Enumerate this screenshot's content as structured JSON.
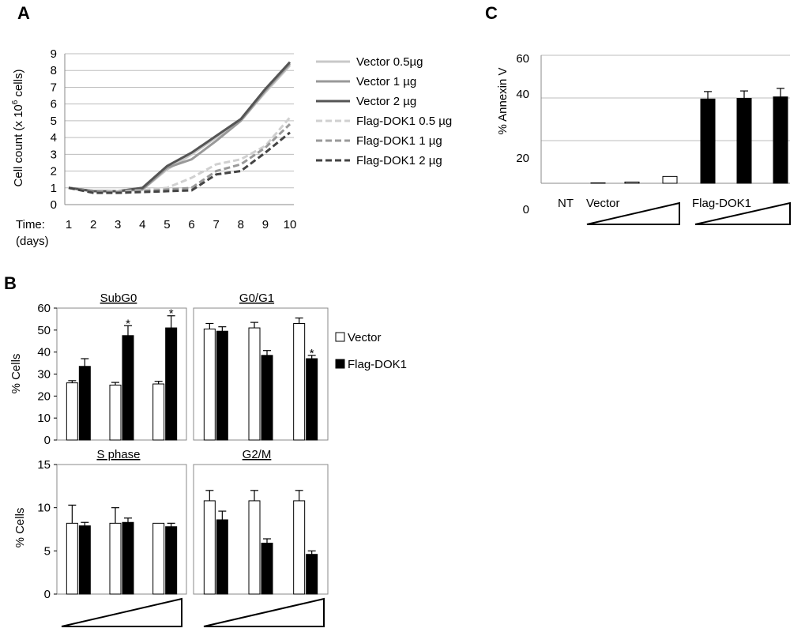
{
  "panels": {
    "a": "A",
    "b": "B",
    "c": "C"
  },
  "chart_data": [
    {
      "panel": "A",
      "type": "line",
      "title": "",
      "xlabel": "Time:",
      "xlabel2": "(days)",
      "ylabel": "Cell count (x 10",
      "ylabel_sup": "6",
      "ylabel_end": " cells)",
      "x": [
        1,
        2,
        3,
        4,
        5,
        6,
        7,
        8,
        9,
        10
      ],
      "ylim": [
        0,
        9
      ],
      "yticks": [
        0,
        1,
        2,
        3,
        4,
        5,
        6,
        7,
        8,
        9
      ],
      "grid": true,
      "legend": "right",
      "series": [
        {
          "name": "Vector 0.5µg",
          "color": "#c8c8c8",
          "dash": false,
          "values": [
            1.0,
            0.8,
            0.8,
            0.9,
            2.1,
            3.0,
            4.0,
            5.0,
            6.7,
            8.3
          ]
        },
        {
          "name": "Vector 1 µg",
          "color": "#999999",
          "dash": false,
          "values": [
            1.0,
            0.8,
            0.8,
            0.9,
            2.2,
            2.7,
            3.8,
            5.0,
            6.8,
            8.4
          ]
        },
        {
          "name": "Vector 2 µg",
          "color": "#555555",
          "dash": false,
          "values": [
            1.0,
            0.8,
            0.8,
            1.0,
            2.3,
            3.1,
            4.1,
            5.1,
            6.9,
            8.5
          ]
        },
        {
          "name": "Flag-DOK1 0.5 µg",
          "color": "#d0d0d0",
          "dash": true,
          "values": [
            1.0,
            0.75,
            0.8,
            0.85,
            1.0,
            1.6,
            2.4,
            2.7,
            3.5,
            5.2
          ]
        },
        {
          "name": "Flag-DOK1 1 µg",
          "color": "#9a9a9a",
          "dash": true,
          "values": [
            1.0,
            0.75,
            0.75,
            0.8,
            0.9,
            1.0,
            2.0,
            2.4,
            3.4,
            4.8
          ]
        },
        {
          "name": "Flag-DOK1 2 µg",
          "color": "#444444",
          "dash": true,
          "values": [
            1.0,
            0.7,
            0.7,
            0.75,
            0.8,
            0.85,
            1.8,
            2.0,
            3.1,
            4.3
          ]
        }
      ]
    },
    {
      "panel": "C",
      "type": "bar",
      "ylabel": "% Annexin V",
      "ylim": [
        0,
        60
      ],
      "yticks": [
        0,
        20,
        40,
        60
      ],
      "grid": true,
      "group_labels": [
        "NT",
        "Vector",
        "Flag-DOK1"
      ],
      "bars": [
        {
          "group": "NT",
          "value": 0,
          "err": 0,
          "fill": "white"
        },
        {
          "group": "Vector",
          "value": 0.2,
          "err": 0,
          "fill": "white"
        },
        {
          "group": "Vector",
          "value": 0.6,
          "err": 0,
          "fill": "white"
        },
        {
          "group": "Vector",
          "value": 3.2,
          "err": 0,
          "fill": "white"
        },
        {
          "group": "Flag-DOK1",
          "value": 39.5,
          "err": 3.5,
          "fill": "black"
        },
        {
          "group": "Flag-DOK1",
          "value": 39.8,
          "err": 3.5,
          "fill": "black"
        },
        {
          "group": "Flag-DOK1",
          "value": 40.5,
          "err": 4.0,
          "fill": "black"
        }
      ]
    },
    {
      "panel": "B",
      "type": "bar",
      "ylabel": "% Cells",
      "legend": "right",
      "series_names": [
        "Vector",
        "Flag-DOK1"
      ],
      "subplots": [
        {
          "title": "SubG0",
          "ylim": [
            0,
            60
          ],
          "yticks": [
            0,
            10,
            20,
            30,
            40,
            50,
            60
          ],
          "show_yaxis": true,
          "vector": [
            26,
            25,
            25.5
          ],
          "vector_err": [
            1,
            1.2,
            1.2
          ],
          "dok1": [
            33.5,
            47.5,
            51
          ],
          "dok1_err": [
            3.5,
            4.5,
            5.5
          ],
          "stars": [
            "",
            "*",
            "*"
          ]
        },
        {
          "title": "G0/G1",
          "ylim": [
            0,
            60
          ],
          "yticks": [
            0,
            10,
            20,
            30,
            40,
            50,
            60
          ],
          "show_yaxis": false,
          "vector": [
            50.5,
            51,
            53
          ],
          "vector_err": [
            2.5,
            2.5,
            2.5
          ],
          "dok1": [
            49.5,
            38.5,
            37
          ],
          "dok1_err": [
            2,
            2.2,
            1.5
          ],
          "stars": [
            "",
            "",
            "*"
          ]
        },
        {
          "title": "S phase",
          "ylim": [
            0,
            15
          ],
          "yticks": [
            0,
            5,
            10,
            15
          ],
          "show_yaxis": true,
          "vector": [
            8.2,
            8.2,
            8.2
          ],
          "vector_err": [
            2.1,
            1.8,
            0
          ],
          "dok1": [
            7.9,
            8.3,
            7.8
          ],
          "dok1_err": [
            0.4,
            0.5,
            0.4
          ],
          "stars": [
            "",
            "",
            ""
          ]
        },
        {
          "title": "G2/M",
          "ylim": [
            0,
            15
          ],
          "yticks": [
            0,
            5,
            10,
            15
          ],
          "show_yaxis": false,
          "vector": [
            10.8,
            10.8,
            10.8
          ],
          "vector_err": [
            1.2,
            1.2,
            1.2
          ],
          "dok1": [
            8.6,
            5.9,
            4.6
          ],
          "dok1_err": [
            1.0,
            0.5,
            0.4
          ],
          "stars": [
            "",
            "",
            ""
          ]
        }
      ]
    }
  ]
}
